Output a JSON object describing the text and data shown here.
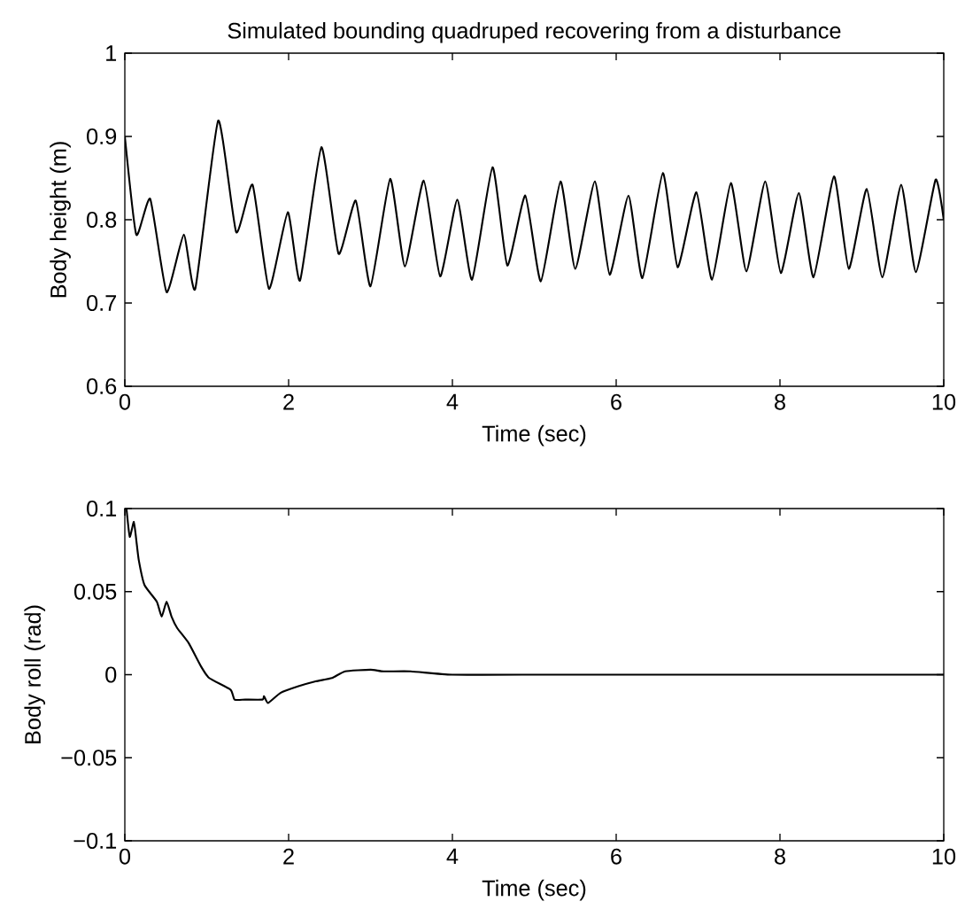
{
  "chart_data": [
    {
      "type": "line",
      "title": "Simulated bounding quadruped recovering from a disturbance",
      "xlabel": "Time (sec)",
      "ylabel": "Body height (m)",
      "color": "#000000",
      "x": [
        0,
        0.14,
        0.31,
        0.51,
        0.72,
        0.86,
        1.14,
        1.36,
        1.56,
        1.76,
        1.99,
        2.14,
        2.4,
        2.61,
        2.82,
        3.0,
        3.24,
        3.42,
        3.65,
        3.85,
        4.06,
        4.24,
        4.49,
        4.67,
        4.89,
        5.08,
        5.32,
        5.5,
        5.74,
        5.92,
        6.15,
        6.32,
        6.57,
        6.75,
        6.98,
        7.17,
        7.4,
        7.59,
        7.82,
        8.01,
        8.23,
        8.41,
        8.66,
        8.84,
        9.06,
        9.25,
        9.48,
        9.66,
        9.9,
        10
      ],
      "values": [
        0.9,
        0.782,
        0.825,
        0.713,
        0.782,
        0.717,
        0.919,
        0.785,
        0.842,
        0.717,
        0.809,
        0.727,
        0.887,
        0.759,
        0.823,
        0.72,
        0.849,
        0.744,
        0.847,
        0.732,
        0.824,
        0.728,
        0.863,
        0.745,
        0.829,
        0.726,
        0.846,
        0.741,
        0.846,
        0.734,
        0.829,
        0.73,
        0.856,
        0.743,
        0.833,
        0.728,
        0.844,
        0.738,
        0.846,
        0.736,
        0.832,
        0.731,
        0.852,
        0.741,
        0.837,
        0.731,
        0.842,
        0.737,
        0.848,
        0.8
      ],
      "xlim": [
        0,
        10
      ],
      "ylim": [
        0.6,
        1
      ],
      "xticks": [
        0,
        2,
        4,
        6,
        8,
        10
      ],
      "yticks": [
        0.6,
        0.7,
        0.8,
        0.9,
        1
      ]
    },
    {
      "type": "line",
      "xlabel": "Time (sec)",
      "ylabel": "Body roll (rad)",
      "color": "#000000",
      "x": [
        0.02,
        0.06,
        0.11,
        0.14,
        0.17,
        0.24,
        0.39,
        0.45,
        0.51,
        0.57,
        0.64,
        0.78,
        0.93,
        1.03,
        1.29,
        1.34,
        1.47,
        1.68,
        1.7,
        1.75,
        1.9,
        2.12,
        2.33,
        2.53,
        2.69,
        3.0,
        3.16,
        3.49,
        3.99,
        4.85,
        10
      ],
      "values": [
        0.1,
        0.083,
        0.092,
        0.081,
        0.069,
        0.054,
        0.044,
        0.035,
        0.044,
        0.035,
        0.028,
        0.019,
        0.005,
        -0.002,
        -0.009,
        -0.015,
        -0.015,
        -0.015,
        -0.013,
        -0.017,
        -0.011,
        -0.007,
        -0.004,
        -0.002,
        0.002,
        0.003,
        0.002,
        0.002,
        0,
        0,
        0
      ],
      "xlim": [
        0,
        10
      ],
      "ylim": [
        -0.1,
        0.1
      ],
      "xticks": [
        0,
        2,
        4,
        6,
        8,
        10
      ],
      "yticks": [
        {
          "value": -0.1,
          "label": "−0.1"
        },
        {
          "value": -0.05,
          "label": "−0.05"
        },
        0,
        0.05,
        0.1
      ]
    }
  ]
}
